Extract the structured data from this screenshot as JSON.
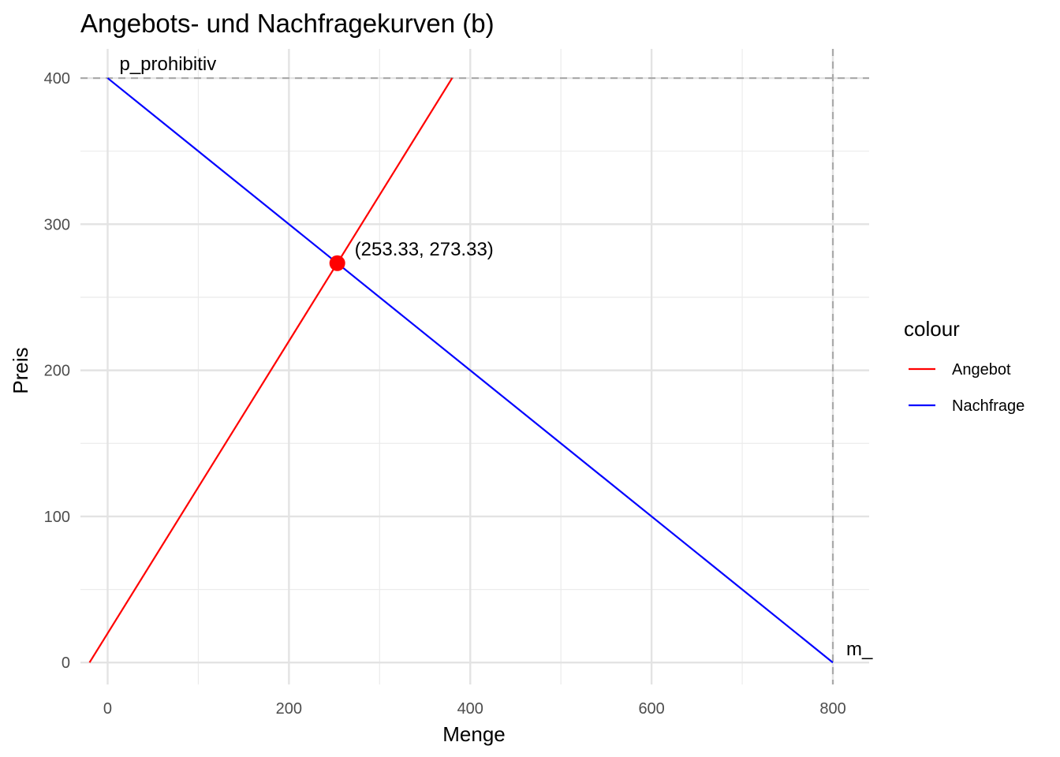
{
  "chart_data": {
    "type": "line",
    "title": "Angebots- und Nachfragekurven (b)",
    "xlabel": "Menge",
    "ylabel": "Preis",
    "xlim": [
      -30,
      840
    ],
    "ylim": [
      -15,
      420
    ],
    "x_ticks": [
      0,
      200,
      400,
      600,
      800
    ],
    "y_ticks": [
      0,
      100,
      200,
      300,
      400
    ],
    "grid": true,
    "legend": {
      "title": "colour",
      "placement": "right",
      "entries": [
        {
          "label": "Angebot",
          "color": "#ff0000"
        },
        {
          "label": "Nachfrage",
          "color": "#0000ff"
        }
      ]
    },
    "series": [
      {
        "name": "Angebot",
        "color": "#ff0000",
        "points": [
          [
            -20,
            0
          ],
          [
            380,
            400
          ]
        ]
      },
      {
        "name": "Nachfrage",
        "color": "#0000ff",
        "points": [
          [
            0,
            400
          ],
          [
            800,
            0
          ]
        ]
      }
    ],
    "reference_lines": [
      {
        "orientation": "horizontal",
        "value": 400,
        "label": "p_prohibitiv",
        "color": "#aaaaaa"
      },
      {
        "orientation": "vertical",
        "value": 800,
        "label": "m_",
        "color": "#aaaaaa"
      }
    ],
    "equilibrium": {
      "x": 253.33,
      "y": 273.33,
      "label": "(253.33, 273.33)",
      "color": "#ff0000"
    }
  }
}
